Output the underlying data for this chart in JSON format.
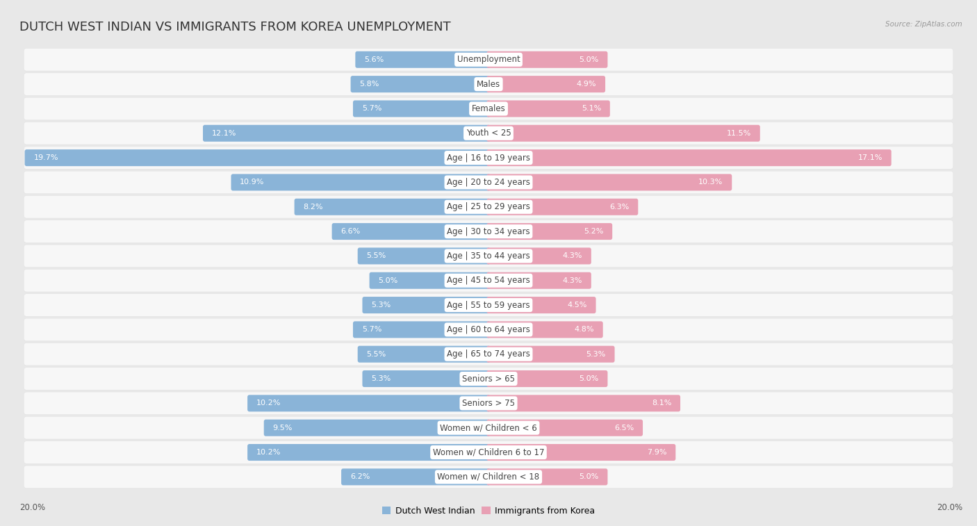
{
  "title": "DUTCH WEST INDIAN VS IMMIGRANTS FROM KOREA UNEMPLOYMENT",
  "source": "Source: ZipAtlas.com",
  "categories": [
    "Unemployment",
    "Males",
    "Females",
    "Youth < 25",
    "Age | 16 to 19 years",
    "Age | 20 to 24 years",
    "Age | 25 to 29 years",
    "Age | 30 to 34 years",
    "Age | 35 to 44 years",
    "Age | 45 to 54 years",
    "Age | 55 to 59 years",
    "Age | 60 to 64 years",
    "Age | 65 to 74 years",
    "Seniors > 65",
    "Seniors > 75",
    "Women w/ Children < 6",
    "Women w/ Children 6 to 17",
    "Women w/ Children < 18"
  ],
  "left_values": [
    5.6,
    5.8,
    5.7,
    12.1,
    19.7,
    10.9,
    8.2,
    6.6,
    5.5,
    5.0,
    5.3,
    5.7,
    5.5,
    5.3,
    10.2,
    9.5,
    10.2,
    6.2
  ],
  "right_values": [
    5.0,
    4.9,
    5.1,
    11.5,
    17.1,
    10.3,
    6.3,
    5.2,
    4.3,
    4.3,
    4.5,
    4.8,
    5.3,
    5.0,
    8.1,
    6.5,
    7.9,
    5.0
  ],
  "left_color": "#8ab4d8",
  "right_color": "#e8a0b4",
  "left_label": "Dutch West Indian",
  "right_label": "Immigrants from Korea",
  "max_val": 20.0,
  "background_color": "#e8e8e8",
  "row_bg_color": "#f5f5f5",
  "title_fontsize": 13,
  "label_fontsize": 8.5,
  "value_fontsize": 8.0,
  "axis_label_fontsize": 8.5
}
